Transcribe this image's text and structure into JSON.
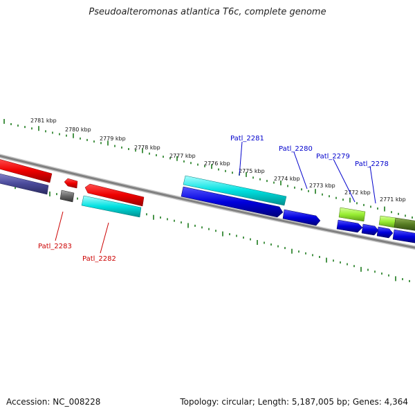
{
  "title": "Pseudoalteromonas atlantica T6c, complete genome",
  "footer": {
    "accession": "Accession: NC_008228",
    "summary": "Topology: circular; Length: 5,187,005 bp; Genes: 4,364"
  },
  "kbp_labels": [
    "2781 kbp",
    "2780 kbp",
    "2779 kbp",
    "2778 kbp",
    "2777 kbp",
    "2776 kbp",
    "2775 kbp",
    "2774 kbp",
    "2773 kbp",
    "2772 kbp",
    "2771 kbp"
  ],
  "gene_labels": {
    "g2283": "Patl_2283",
    "g2282": "Patl_2282",
    "g2281": "Patl_2281",
    "g2280": "Patl_2280",
    "g2279": "Patl_2279",
    "g2278": "Patl_2278"
  },
  "colors": {
    "ticks": "#1a7a1a",
    "backbone": "#808080",
    "red": "#ee0000",
    "cyan": "#00e0e0",
    "blue": "#0000dd",
    "slate": "#4a4a9a",
    "lime": "#99ee33",
    "olive": "#557a22",
    "gray_block": "#666666",
    "label_red": "#cc0000",
    "label_blue": "#0000cc"
  }
}
